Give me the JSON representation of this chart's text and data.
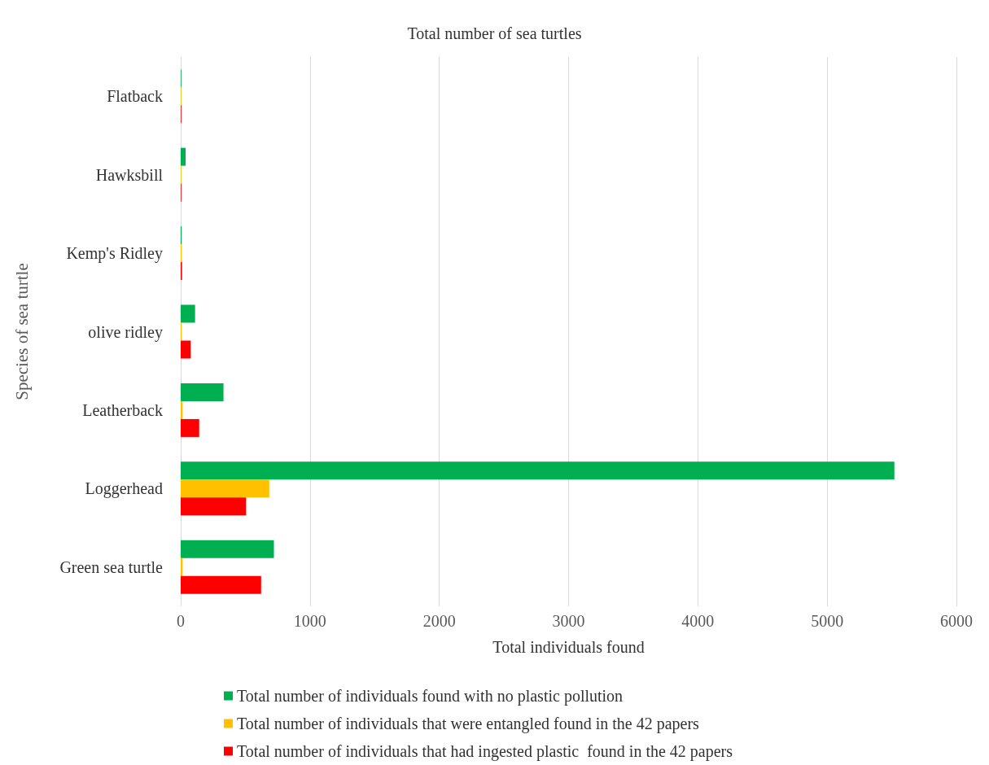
{
  "chart_data": {
    "type": "bar",
    "orientation": "horizontal",
    "title": "Total number of sea turtles",
    "xlabel": "Total individuals found",
    "ylabel": "Species of sea turtle",
    "categories": [
      "Flatback",
      "Hawksbill",
      "Kemp's Ridley",
      "olive ridley",
      "Leatherback",
      "Loggerhead",
      "Green sea turtle"
    ],
    "series": [
      {
        "name": "Total number of individuals found with no plastic pollution",
        "color": "#00b050",
        "values": [
          5,
          38,
          7,
          111,
          331,
          5520,
          721
        ]
      },
      {
        "name": "Total number of individuals that were entangled found in the 42 papers",
        "color": "#ffc000",
        "values": [
          5,
          5,
          8,
          8,
          15,
          685,
          15
        ]
      },
      {
        "name": "Total number of individuals that had ingested plastic  found in the 42 papers",
        "color": "#ff0000",
        "values": [
          5,
          5,
          10,
          78,
          143,
          506,
          622
        ]
      }
    ],
    "xlim": [
      0,
      6000
    ],
    "xticks": [
      0,
      1000,
      2000,
      3000,
      4000,
      5000,
      6000
    ],
    "grid": "x",
    "legend": "bottom"
  }
}
